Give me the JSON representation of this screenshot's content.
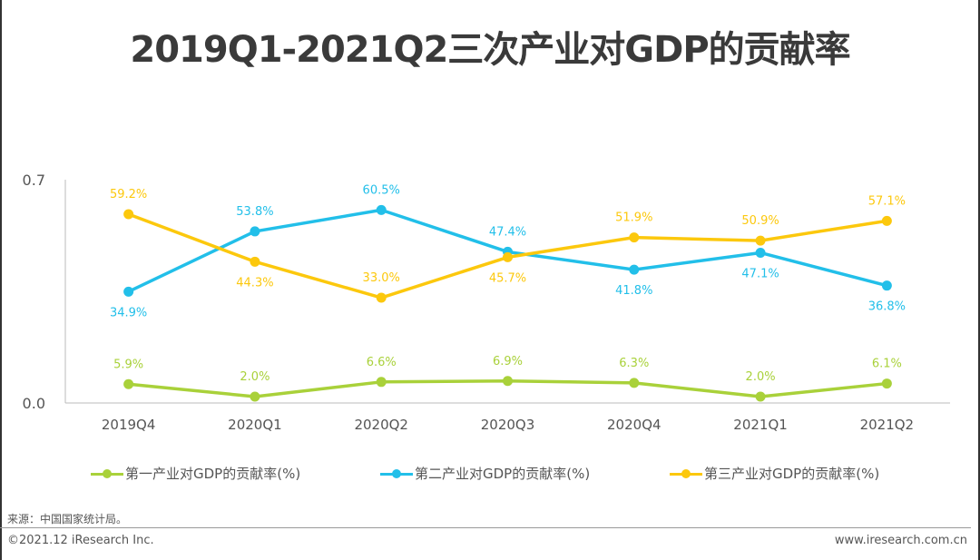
{
  "title": "2019Q1-2021Q2三次产业对GDP的贡献率",
  "footer": {
    "source": "来源：中国国家统计局。",
    "copyright": "©2021.12 iResearch Inc.",
    "website": "www.iresearch.com.cn"
  },
  "chart_data": {
    "type": "line",
    "title": "2019Q1-2021Q2三次产业对GDP的贡献率",
    "xlabel": "",
    "ylabel": "",
    "categories": [
      "2019Q4",
      "2020Q1",
      "2020Q2",
      "2020Q3",
      "2020Q4",
      "2021Q1",
      "2021Q2"
    ],
    "ylim": [
      0,
      0.7
    ],
    "yticks": [
      0.0,
      0.7
    ],
    "ytick_labels": [
      "0.0",
      "0.7"
    ],
    "grid": false,
    "legend_position": "bottom",
    "series": [
      {
        "name": "第一产业对GDP的贡献率(%)",
        "color": "#a9d13a",
        "values": [
          0.059,
          0.02,
          0.066,
          0.069,
          0.063,
          0.02,
          0.061
        ],
        "labels": [
          "5.9%",
          "2.0%",
          "6.6%",
          "6.9%",
          "6.3%",
          "2.0%",
          "6.1%"
        ],
        "label_position": [
          "above",
          "above",
          "above",
          "above",
          "above",
          "above",
          "above"
        ]
      },
      {
        "name": "第二产业对GDP的贡献率(%)",
        "color": "#22bfe9",
        "values": [
          0.349,
          0.538,
          0.605,
          0.474,
          0.418,
          0.471,
          0.368
        ],
        "labels": [
          "34.9%",
          "53.8%",
          "60.5%",
          "47.4%",
          "41.8%",
          "47.1%",
          "36.8%"
        ],
        "label_position": [
          "below",
          "above",
          "above",
          "above",
          "below",
          "below",
          "below"
        ]
      },
      {
        "name": "第三产业对GDP的贡献率(%)",
        "color": "#fcc80d",
        "values": [
          0.592,
          0.443,
          0.33,
          0.457,
          0.519,
          0.509,
          0.571
        ],
        "labels": [
          "59.2%",
          "44.3%",
          "33.0%",
          "45.7%",
          "51.9%",
          "50.9%",
          "57.1%"
        ],
        "label_position": [
          "above",
          "below",
          "above",
          "below",
          "above",
          "above",
          "above"
        ]
      }
    ]
  }
}
